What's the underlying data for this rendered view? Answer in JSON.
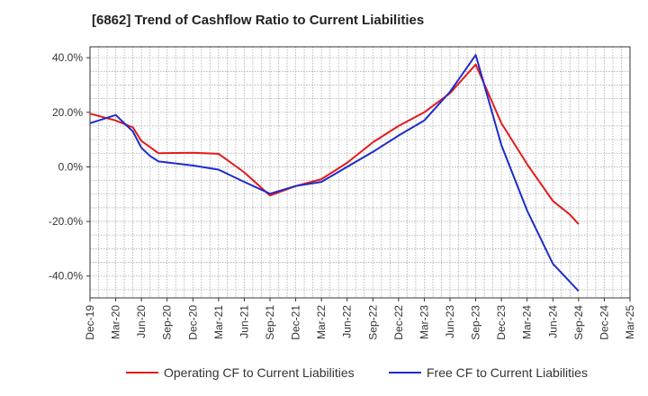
{
  "title": "[6862]  Trend of Cashflow Ratio to Current Liabilities",
  "chart_data": {
    "type": "line",
    "title": "[6862]  Trend of Cashflow Ratio to Current Liabilities",
    "xlabel": "",
    "ylabel": "",
    "ylim": [
      -48,
      44
    ],
    "yticks": [
      40,
      20,
      0,
      -20,
      -40
    ],
    "ytick_labels": [
      "40.0%",
      "20.0%",
      "0.0%",
      "-20.0%",
      "-40.0%"
    ],
    "x_start": "Dec-19",
    "x_end": "Mar-25",
    "xtick_labels": [
      "Dec-19",
      "Mar-20",
      "Jun-20",
      "Sep-20",
      "Dec-20",
      "Mar-21",
      "Jun-21",
      "Sep-21",
      "Dec-21",
      "Mar-22",
      "Jun-22",
      "Sep-22",
      "Dec-22",
      "Mar-23",
      "Jun-23",
      "Sep-23",
      "Dec-23",
      "Mar-24",
      "Jun-24",
      "Sep-24",
      "Dec-24",
      "Mar-25"
    ],
    "grid": true,
    "legend_position": "bottom",
    "series": [
      {
        "name": "Operating CF to Current Liabilities",
        "color": "#e31a1c",
        "points": [
          [
            "Dec-19",
            19.5
          ],
          [
            "Mar-20",
            17.0
          ],
          [
            "May-20",
            14.5
          ],
          [
            "Jun-20",
            9.5
          ],
          [
            "Aug-20",
            5.0
          ],
          [
            "Dec-20",
            5.2
          ],
          [
            "Mar-21",
            4.8
          ],
          [
            "Jun-21",
            -2.0
          ],
          [
            "Sep-21",
            -10.5
          ],
          [
            "Dec-21",
            -7.0
          ],
          [
            "Mar-22",
            -4.5
          ],
          [
            "Jun-22",
            1.5
          ],
          [
            "Sep-22",
            9.0
          ],
          [
            "Dec-22",
            15.0
          ],
          [
            "Mar-23",
            20.0
          ],
          [
            "Jun-23",
            27.0
          ],
          [
            "Sep-23",
            37.5
          ],
          [
            "Dec-23",
            16.0
          ],
          [
            "Mar-24",
            1.0
          ],
          [
            "Jun-24",
            -12.5
          ],
          [
            "Aug-24",
            -17.5
          ],
          [
            "Sep-24",
            -21.0
          ]
        ]
      },
      {
        "name": "Free CF to Current Liabilities",
        "color": "#1f2bcc",
        "points": [
          [
            "Dec-19",
            16.0
          ],
          [
            "Mar-20",
            19.0
          ],
          [
            "May-20",
            13.0
          ],
          [
            "Jun-20",
            7.0
          ],
          [
            "Jul-20",
            4.0
          ],
          [
            "Aug-20",
            2.0
          ],
          [
            "Dec-20",
            0.5
          ],
          [
            "Mar-21",
            -1.0
          ],
          [
            "Jun-21",
            -5.5
          ],
          [
            "Sep-21",
            -9.8
          ],
          [
            "Dec-21",
            -7.0
          ],
          [
            "Mar-22",
            -5.5
          ],
          [
            "Jun-22",
            0.0
          ],
          [
            "Sep-22",
            5.5
          ],
          [
            "Dec-22",
            11.5
          ],
          [
            "Mar-23",
            17.0
          ],
          [
            "Jun-23",
            27.5
          ],
          [
            "Sep-23",
            41.0
          ],
          [
            "Dec-23",
            8.0
          ],
          [
            "Mar-24",
            -16.0
          ],
          [
            "Jun-24",
            -35.5
          ],
          [
            "Sep-24",
            -45.5
          ]
        ]
      }
    ]
  }
}
